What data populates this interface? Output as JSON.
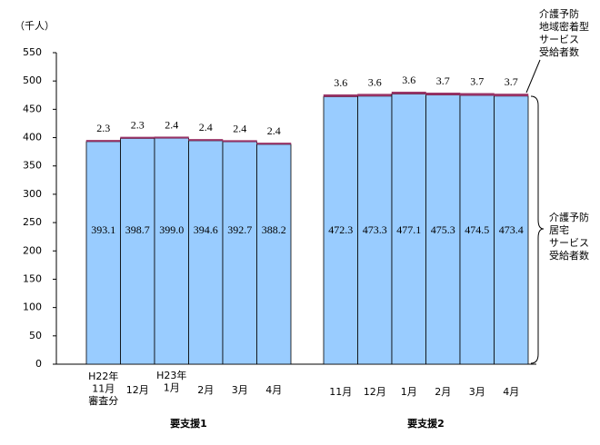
{
  "chart_data": {
    "type": "stacked-bar",
    "y_unit": "（千人）",
    "categories": [
      [
        "H22年",
        "11月",
        "審査分"
      ],
      [
        "12月"
      ],
      [
        "H23年",
        "1月"
      ],
      [
        "2月"
      ],
      [
        "3月"
      ],
      [
        "4月"
      ],
      [
        "11月"
      ],
      [
        "12月"
      ],
      [
        "1月"
      ],
      [
        "2月"
      ],
      [
        "3月"
      ],
      [
        "4月"
      ]
    ],
    "group_labels": [
      "要支援1",
      "要支援2"
    ],
    "series": [
      {
        "name": [
          "介護予防",
          "居宅",
          "サービス",
          "受給者数"
        ],
        "color": "#99ccff",
        "values": [
          393.1,
          398.7,
          399,
          394.6,
          392.7,
          388.2,
          472.3,
          473.3,
          477.1,
          475.3,
          474.5,
          473.4
        ],
        "value_labels": [
          "393.1",
          "398.7",
          "399.0",
          "394.6",
          "392.7",
          "388.2",
          "472.3",
          "473.3",
          "477.1",
          "475.3",
          "474.5",
          "473.4"
        ]
      },
      {
        "name": [
          "介護予防",
          "地域密着型",
          "サービス",
          "受給者数"
        ],
        "color": "#993366",
        "values": [
          2.3,
          2.3,
          2.4,
          2.4,
          2.4,
          2.4,
          3.6,
          3.6,
          3.6,
          3.7,
          3.7,
          3.7
        ]
      }
    ],
    "ylim": [
      0,
      550
    ],
    "yticks": [
      0,
      50,
      100,
      150,
      200,
      250,
      300,
      350,
      400,
      450,
      500,
      550
    ]
  }
}
